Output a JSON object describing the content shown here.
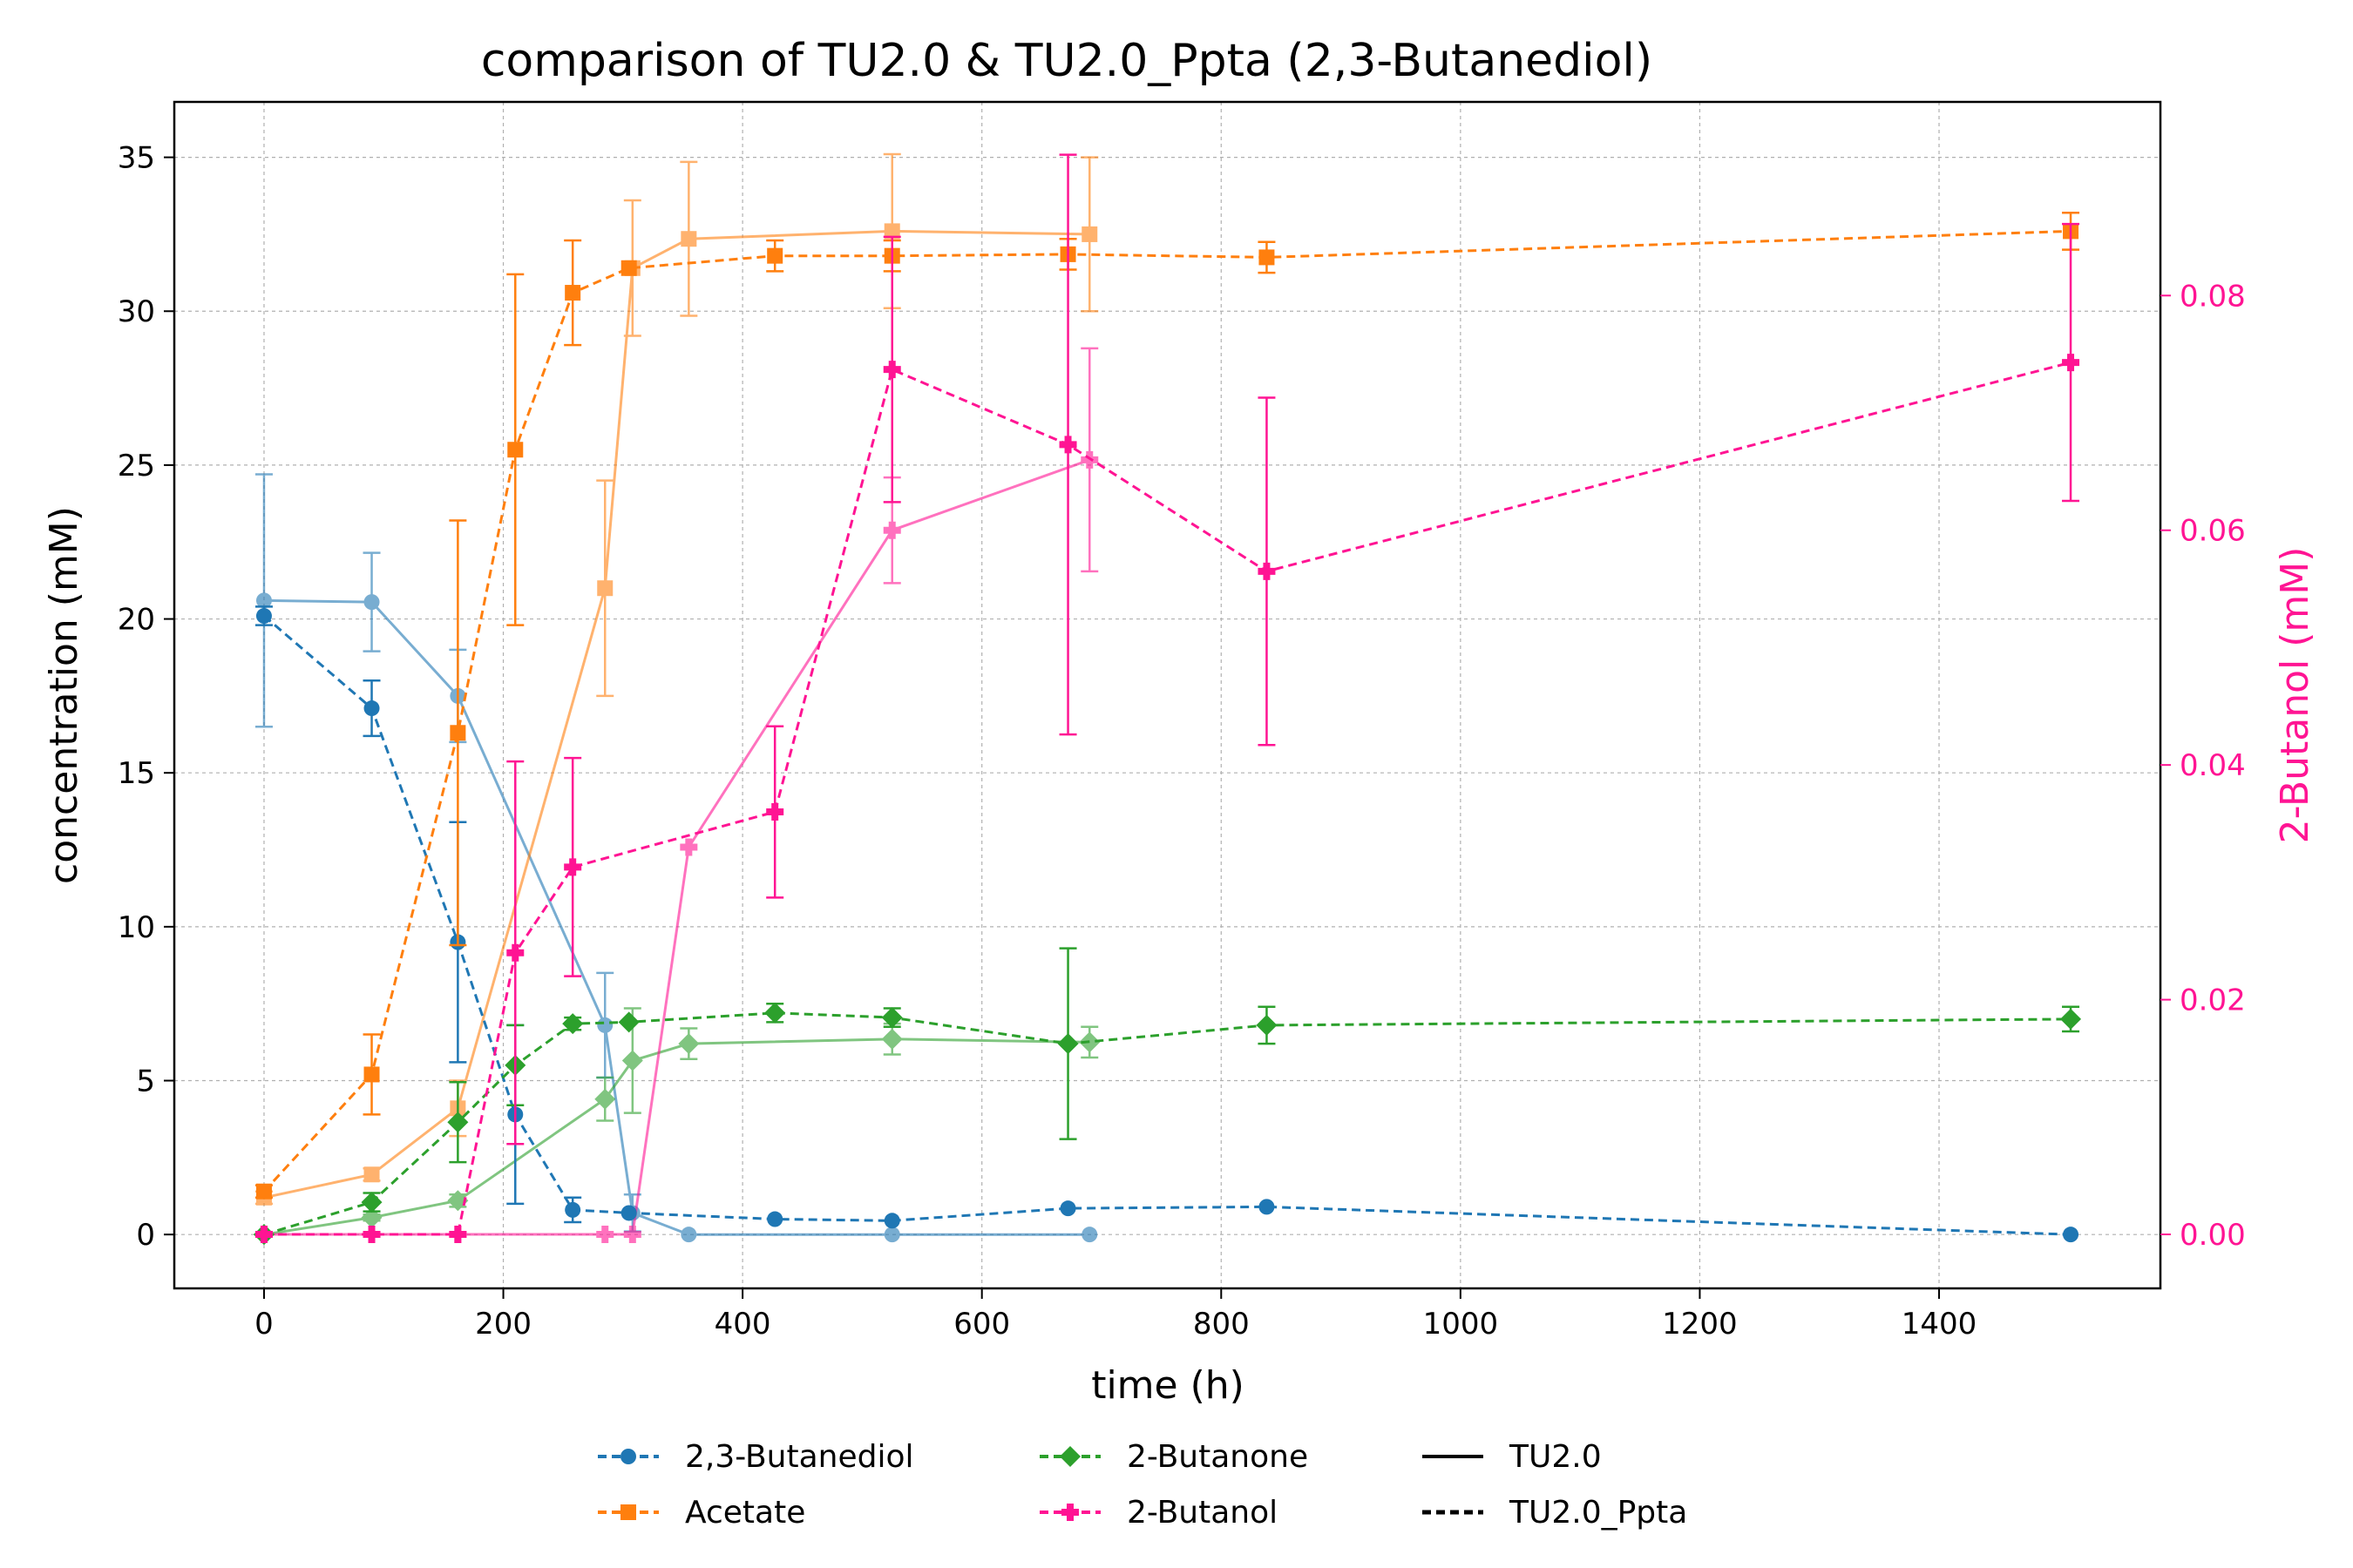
{
  "chart_data": {
    "type": "line",
    "title": "comparison of TU2.0 & TU2.0_Ppta (2,3-Butanediol)",
    "xlabel": "time (h)",
    "ylabel": "concentration (mM)",
    "y2label": "2-Butanol (mM)",
    "xlim": [
      -75,
      1585
    ],
    "ylim": [
      -1.75,
      36.8
    ],
    "y2lim": [
      -0.0046,
      0.0965
    ],
    "xticks": [
      0,
      200,
      400,
      600,
      800,
      1000,
      1200,
      1400
    ],
    "yticks": [
      0,
      5,
      10,
      15,
      20,
      25,
      30,
      35
    ],
    "y2ticks": [
      0.0,
      0.02,
      0.04,
      0.06,
      0.08
    ],
    "y2tick_labels": [
      "0.00",
      "0.02",
      "0.04",
      "0.06",
      "0.08"
    ],
    "grid": true,
    "legend_position": "bottom-center",
    "colors": {
      "butanediol": "#1f77b4",
      "acetate": "#ff7f0e",
      "butanone": "#2ca02c",
      "butanol": "#ff1493",
      "right_axis": "#ff1493"
    },
    "legend": {
      "butanediol": "2,3-Butanediol",
      "acetate": "Acetate",
      "butanone": "2-Butanone",
      "butanol": "2-Butanol",
      "tu20": "TU2.0",
      "tu20_ppta": "TU2.0_Ppta"
    },
    "series": [
      {
        "compound": "butanediol",
        "strain": "TU2.0",
        "axis": "left",
        "marker": "circle",
        "x": [
          0,
          90,
          162,
          285,
          308,
          355,
          525,
          690
        ],
        "y": [
          20.6,
          20.55,
          17.5,
          6.8,
          0.7,
          0.0,
          0.0,
          0.0
        ],
        "err": [
          4.1,
          1.6,
          1.5,
          1.7,
          0.6,
          0,
          0,
          0
        ]
      },
      {
        "compound": "butanediol",
        "strain": "TU2.0_Ppta",
        "axis": "left",
        "marker": "circle",
        "x": [
          0,
          90,
          162,
          210,
          258,
          305,
          427,
          525,
          672,
          838,
          1510
        ],
        "y": [
          20.1,
          17.1,
          9.5,
          3.9,
          0.8,
          0.7,
          0.5,
          0.45,
          0.85,
          0.9,
          0.0
        ],
        "err": [
          0.3,
          0.9,
          3.9,
          2.9,
          0.4,
          0,
          0,
          0,
          0,
          0,
          0
        ]
      },
      {
        "compound": "acetate",
        "strain": "TU2.0",
        "axis": "left",
        "marker": "square",
        "x": [
          0,
          90,
          162,
          285,
          308,
          355,
          525,
          690
        ],
        "y": [
          1.2,
          1.95,
          4.1,
          21.0,
          31.4,
          32.35,
          32.6,
          32.5
        ],
        "err": [
          0.2,
          0.2,
          0.9,
          3.5,
          2.2,
          2.5,
          2.5,
          2.5
        ]
      },
      {
        "compound": "acetate",
        "strain": "TU2.0_Ppta",
        "axis": "left",
        "marker": "square",
        "x": [
          0,
          90,
          162,
          210,
          258,
          305,
          427,
          525,
          672,
          838,
          1510
        ],
        "y": [
          1.4,
          5.2,
          16.3,
          25.5,
          30.6,
          31.4,
          31.8,
          31.8,
          31.85,
          31.75,
          32.6
        ],
        "err": [
          0.2,
          1.3,
          6.9,
          5.7,
          1.7,
          0,
          0.5,
          0.5,
          0.5,
          0.5,
          0.6
        ]
      },
      {
        "compound": "butanone",
        "strain": "TU2.0",
        "axis": "left",
        "marker": "diamond",
        "x": [
          0,
          90,
          162,
          285,
          308,
          355,
          525,
          690
        ],
        "y": [
          0.0,
          0.55,
          1.1,
          4.4,
          5.65,
          6.2,
          6.35,
          6.25
        ],
        "err": [
          0,
          0.1,
          0.2,
          0.7,
          1.7,
          0.5,
          0.5,
          0.5
        ]
      },
      {
        "compound": "butanone",
        "strain": "TU2.0_Ppta",
        "axis": "left",
        "marker": "diamond",
        "x": [
          0,
          90,
          162,
          210,
          258,
          305,
          427,
          525,
          672,
          838,
          1510
        ],
        "y": [
          0.0,
          1.05,
          3.65,
          5.5,
          6.85,
          6.9,
          7.2,
          7.05,
          6.2,
          6.8,
          7.0
        ],
        "err": [
          0,
          0.3,
          1.3,
          1.3,
          0.2,
          0,
          0.3,
          0.3,
          3.1,
          0.6,
          0.4
        ]
      },
      {
        "compound": "butanol",
        "strain": "TU2.0",
        "axis": "right",
        "marker": "plus",
        "x": [
          0,
          162,
          285,
          308,
          355,
          525,
          690
        ],
        "y": [
          0.0,
          0.0,
          0.0,
          0.0,
          0.033,
          0.06,
          0.066
        ],
        "err": [
          0,
          0,
          0,
          0,
          0,
          0.0045,
          0.0095
        ]
      },
      {
        "compound": "butanol",
        "strain": "TU2.0_Ppta",
        "axis": "right",
        "marker": "plus",
        "x": [
          0,
          90,
          162,
          210,
          258,
          427,
          525,
          672,
          838,
          1510
        ],
        "y": [
          0.0,
          0.0,
          0.0,
          0.024,
          0.0313,
          0.036,
          0.0737,
          0.0673,
          0.0565,
          0.0743
        ],
        "err": [
          0,
          0,
          0,
          0.0163,
          0.0093,
          0.0073,
          0.0113,
          0.0247,
          0.0148,
          0.0118
        ]
      }
    ]
  }
}
